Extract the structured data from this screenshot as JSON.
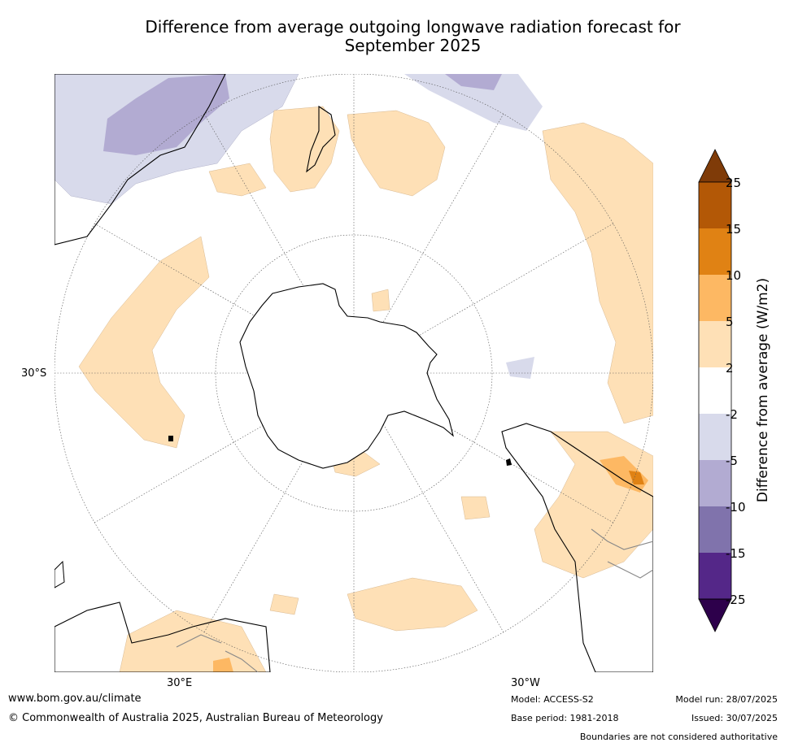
{
  "title": {
    "line1": "Difference from average outgoing longwave radiation forecast for",
    "line2": "September 2025"
  },
  "map": {
    "projection": "south polar stereographic",
    "lat_label": "30°S",
    "lon_labels": [
      "30°E",
      "30°W"
    ]
  },
  "colorbar": {
    "label": "Difference from average (W/m2)",
    "ticks": [
      "25",
      "15",
      "10",
      "5",
      "2",
      "-2",
      "-5",
      "-10",
      "-15",
      "-25"
    ],
    "colors": {
      "above_25": "#7f3b08",
      "15_25": "#b35806",
      "10_15": "#e08214",
      "5_10": "#fdb863",
      "2_5": "#fee0b6",
      "neutral": "#ffffff",
      "m2_m5": "#d8daeb",
      "m5_m10": "#b2abd2",
      "m10_m15": "#8073ac",
      "m15_m25": "#542788",
      "below_m25": "#2d004b"
    }
  },
  "footer": {
    "website": "www.bom.gov.au/climate",
    "copyright": "© Commonwealth of Australia 2025, Australian Bureau of Meteorology",
    "model": "Model: ACCESS-S2",
    "base_period": "Base period: 1981-2018",
    "model_run": "Model run: 28/07/2025",
    "issued": "Issued: 30/07/2025",
    "disclaimer": "Boundaries are not considered authoritative"
  }
}
